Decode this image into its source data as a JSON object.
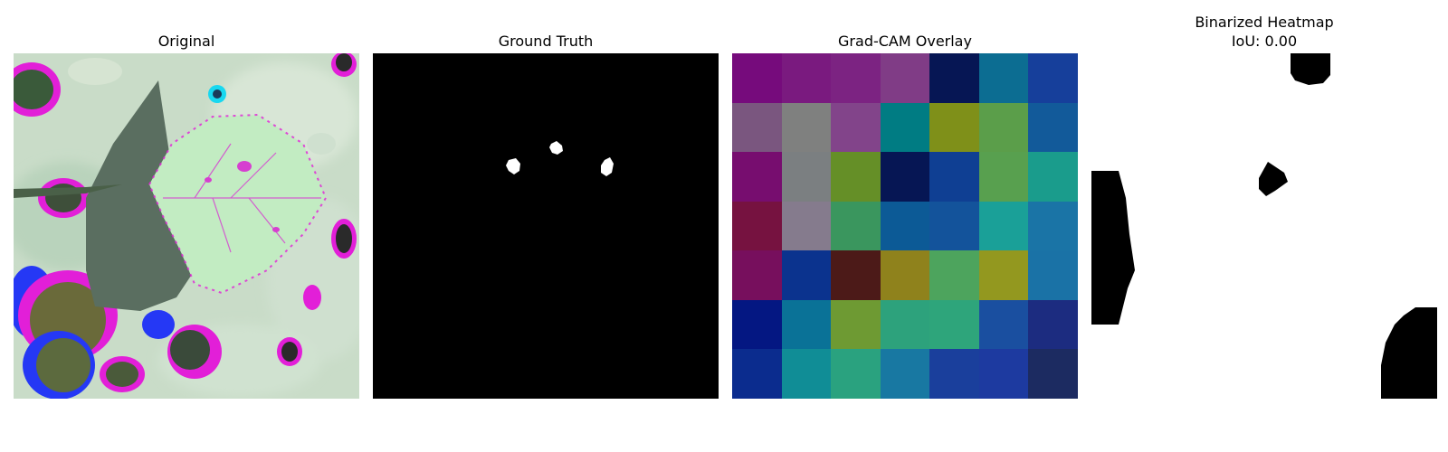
{
  "panels": {
    "original": {
      "title": "Original"
    },
    "ground_truth": {
      "title": "Ground Truth"
    },
    "gradcam": {
      "title": "Grad-CAM Overlay",
      "cells": [
        [
          "#760b7c",
          "#7a1a7f",
          "#7c2382",
          "#803c86",
          "#061654",
          "#0c6d92",
          "#163f9b"
        ],
        [
          "#7a567f",
          "#7f807f",
          "#82448a",
          "#007c83",
          "#7f9019",
          "#5b9e4a",
          "#125a9a"
        ],
        [
          "#770d6f",
          "#7b7f81",
          "#658f27",
          "#061654",
          "#0f3f93",
          "#58a04f",
          "#1a9c8c"
        ],
        [
          "#761240",
          "#857b8d",
          "#3a965e",
          "#0c5a96",
          "#13539b",
          "#1aa098",
          "#1a74a6"
        ],
        [
          "#770f5d",
          "#0b338e",
          "#4c1a18",
          "#8f821c",
          "#4da45d",
          "#93981f",
          "#1a72a6"
        ],
        [
          "#041782",
          "#0a7297",
          "#6e9a33",
          "#2da27c",
          "#2ea57b",
          "#1a4fa0",
          "#1c2c80"
        ],
        [
          "#0b2c8e",
          "#108d96",
          "#2aa27f",
          "#1878a2",
          "#1a3f9c",
          "#1d3aa0",
          "#1c2b61"
        ]
      ]
    },
    "binarized": {
      "title": "Binarized Heatmap\nIoU: 0.00"
    }
  },
  "colors": {
    "background": "#ffffff",
    "mask_foreground": "#ffffff",
    "mask_background": "#000000"
  }
}
